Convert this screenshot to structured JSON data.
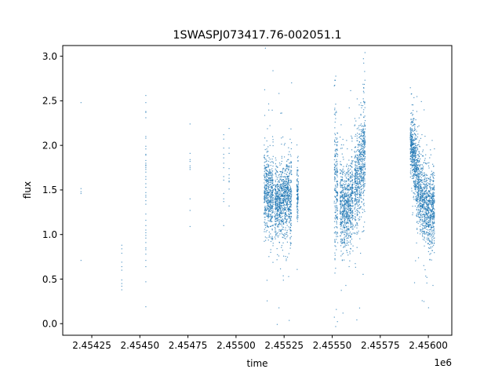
{
  "chart_data": {
    "type": "scatter",
    "title": "1SWASPJ073417.76-002051.1",
    "xlabel": "time",
    "ylabel": "flux",
    "x_offset_label": "1e6",
    "xlim": [
      2454099,
      2456122
    ],
    "ylim": [
      -0.13,
      3.12
    ],
    "x_ticks": [
      2454250,
      2454500,
      2454750,
      2455000,
      2455250,
      2455500,
      2455750,
      2456000
    ],
    "x_tick_labels": [
      "2.45425",
      "2.45450",
      "2.45475",
      "2.45500",
      "2.45525",
      "2.45550",
      "2.45575",
      "2.45600"
    ],
    "y_ticks": [
      0.0,
      0.5,
      1.0,
      1.5,
      2.0,
      2.5,
      3.0
    ],
    "y_tick_labels": [
      "0.0",
      "0.5",
      "1.0",
      "1.5",
      "2.0",
      "2.5",
      "3.0"
    ],
    "grid": false,
    "marker_color": "#1f77b4",
    "sparse_points": [
      [
        2454194,
        2.48
      ],
      [
        2454194,
        1.515
      ],
      [
        2454194,
        1.48
      ],
      [
        2454194,
        1.46
      ],
      [
        2454194,
        0.71
      ],
      [
        2454406,
        0.88
      ],
      [
        2454406,
        0.84
      ],
      [
        2454406,
        0.79
      ],
      [
        2454406,
        0.69
      ],
      [
        2454406,
        0.64
      ],
      [
        2454406,
        0.6
      ],
      [
        2454406,
        0.49
      ],
      [
        2454406,
        0.45
      ],
      [
        2454406,
        0.42
      ],
      [
        2454406,
        0.38
      ],
      [
        2454531,
        2.56
      ],
      [
        2454531,
        2.48
      ],
      [
        2454531,
        2.38
      ],
      [
        2454531,
        2.37
      ],
      [
        2454531,
        2.31
      ],
      [
        2454531,
        2.1
      ],
      [
        2454531,
        2.08
      ],
      [
        2454531,
        1.99
      ],
      [
        2454531,
        1.96
      ],
      [
        2454531,
        1.9
      ],
      [
        2454531,
        1.89
      ],
      [
        2454531,
        1.83
      ],
      [
        2454531,
        1.8
      ],
      [
        2454531,
        1.78
      ],
      [
        2454531,
        1.77
      ],
      [
        2454531,
        1.75
      ],
      [
        2454531,
        1.73
      ],
      [
        2454531,
        1.7
      ],
      [
        2454531,
        1.65
      ],
      [
        2454531,
        1.62
      ],
      [
        2454531,
        1.57
      ],
      [
        2454531,
        1.53
      ],
      [
        2454531,
        1.47
      ],
      [
        2454531,
        1.44
      ],
      [
        2454531,
        1.42
      ],
      [
        2454531,
        1.38
      ],
      [
        2454531,
        1.34
      ],
      [
        2454531,
        1.23
      ],
      [
        2454531,
        1.16
      ],
      [
        2454531,
        1.1
      ],
      [
        2454531,
        1.05
      ],
      [
        2454531,
        1.02
      ],
      [
        2454531,
        0.99
      ],
      [
        2454531,
        0.96
      ],
      [
        2454531,
        0.91
      ],
      [
        2454531,
        0.85
      ],
      [
        2454531,
        0.83
      ],
      [
        2454531,
        0.78
      ],
      [
        2454531,
        0.71
      ],
      [
        2454531,
        0.64
      ],
      [
        2454531,
        0.47
      ],
      [
        2454531,
        0.19
      ],
      [
        2454761,
        2.24
      ],
      [
        2454761,
        1.91
      ],
      [
        2454761,
        1.84
      ],
      [
        2454761,
        1.82
      ],
      [
        2454761,
        1.77
      ],
      [
        2454761,
        1.75
      ],
      [
        2454761,
        1.73
      ],
      [
        2454761,
        1.4
      ],
      [
        2454761,
        1.27
      ],
      [
        2454761,
        1.09
      ],
      [
        2454936,
        2.12
      ],
      [
        2454936,
        2.07
      ],
      [
        2454936,
        1.97
      ],
      [
        2454936,
        1.9
      ],
      [
        2454936,
        1.86
      ],
      [
        2454936,
        1.8
      ],
      [
        2454936,
        1.75
      ],
      [
        2454936,
        1.65
      ],
      [
        2454936,
        1.61
      ],
      [
        2454936,
        1.46
      ],
      [
        2454936,
        1.4
      ],
      [
        2454936,
        1.37
      ],
      [
        2454936,
        1.1
      ],
      [
        2454964,
        2.19
      ],
      [
        2454964,
        1.97
      ],
      [
        2454964,
        1.91
      ],
      [
        2454964,
        1.74
      ],
      [
        2454964,
        1.67
      ],
      [
        2454964,
        1.63
      ],
      [
        2454964,
        1.6
      ],
      [
        2454964,
        1.59
      ],
      [
        2454964,
        1.51
      ],
      [
        2454964,
        1.32
      ]
    ],
    "dense_bins_time_flux_sd": [
      [
        2455150,
        1.5,
        0.25
      ],
      [
        2455160,
        1.45,
        0.2
      ],
      [
        2455170,
        1.42,
        0.2
      ],
      [
        2455180,
        1.4,
        0.2
      ],
      [
        2455190,
        1.4,
        0.25
      ],
      [
        2455205,
        1.35,
        0.2
      ],
      [
        2455215,
        1.33,
        0.18
      ],
      [
        2455225,
        1.35,
        0.18
      ],
      [
        2455235,
        1.38,
        0.2
      ],
      [
        2455245,
        1.4,
        0.2
      ],
      [
        2455255,
        1.42,
        0.18
      ],
      [
        2455265,
        1.45,
        0.2
      ],
      [
        2455275,
        1.43,
        0.2
      ],
      [
        2455285,
        1.4,
        0.25
      ],
      [
        2455320,
        1.45,
        0.15
      ],
      [
        2455515,
        1.6,
        0.45
      ],
      [
        2455525,
        1.5,
        0.35
      ],
      [
        2455545,
        1.35,
        0.25
      ],
      [
        2455555,
        1.33,
        0.22
      ],
      [
        2455565,
        1.3,
        0.2
      ],
      [
        2455575,
        1.3,
        0.2
      ],
      [
        2455585,
        1.32,
        0.22
      ],
      [
        2455595,
        1.35,
        0.25
      ],
      [
        2455605,
        1.45,
        0.25
      ],
      [
        2455620,
        1.55,
        0.25
      ],
      [
        2455630,
        1.62,
        0.25
      ],
      [
        2455640,
        1.7,
        0.25
      ],
      [
        2455650,
        1.78,
        0.25
      ],
      [
        2455660,
        1.85,
        0.3
      ],
      [
        2455668,
        1.9,
        0.3
      ],
      [
        2455910,
        2.0,
        0.15
      ],
      [
        2455918,
        1.95,
        0.18
      ],
      [
        2455926,
        1.85,
        0.2
      ],
      [
        2455934,
        1.75,
        0.2
      ],
      [
        2455942,
        1.65,
        0.22
      ],
      [
        2455950,
        1.55,
        0.2
      ],
      [
        2455960,
        1.45,
        0.2
      ],
      [
        2455970,
        1.38,
        0.2
      ],
      [
        2455980,
        1.33,
        0.2
      ],
      [
        2455990,
        1.3,
        0.2
      ],
      [
        2456000,
        1.28,
        0.2
      ],
      [
        2456010,
        1.28,
        0.2
      ],
      [
        2456020,
        1.3,
        0.2
      ],
      [
        2456028,
        1.3,
        0.2
      ]
    ]
  }
}
